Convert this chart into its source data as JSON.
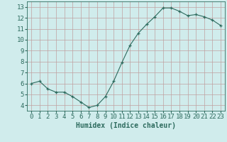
{
  "x": [
    0,
    1,
    2,
    3,
    4,
    5,
    6,
    7,
    8,
    9,
    10,
    11,
    12,
    13,
    14,
    15,
    16,
    17,
    18,
    19,
    20,
    21,
    22,
    23
  ],
  "y": [
    6.0,
    6.2,
    5.5,
    5.2,
    5.2,
    4.8,
    4.3,
    3.8,
    4.0,
    4.8,
    6.2,
    7.9,
    9.5,
    10.6,
    11.4,
    12.1,
    12.9,
    12.9,
    12.6,
    12.2,
    12.3,
    12.1,
    11.8,
    11.3
  ],
  "xlabel": "Humidex (Indice chaleur)",
  "ylim": [
    3.5,
    13.5
  ],
  "xlim": [
    -0.5,
    23.5
  ],
  "yticks": [
    4,
    5,
    6,
    7,
    8,
    9,
    10,
    11,
    12,
    13
  ],
  "xticks": [
    0,
    1,
    2,
    3,
    4,
    5,
    6,
    7,
    8,
    9,
    10,
    11,
    12,
    13,
    14,
    15,
    16,
    17,
    18,
    19,
    20,
    21,
    22,
    23
  ],
  "line_color": "#2d6b5e",
  "marker": "+",
  "bg_color": "#d0ecec",
  "grid_color": "#c0a0a0",
  "tick_color": "#2d6b5e",
  "label_fontsize": 6.5,
  "xlabel_fontsize": 7.0
}
